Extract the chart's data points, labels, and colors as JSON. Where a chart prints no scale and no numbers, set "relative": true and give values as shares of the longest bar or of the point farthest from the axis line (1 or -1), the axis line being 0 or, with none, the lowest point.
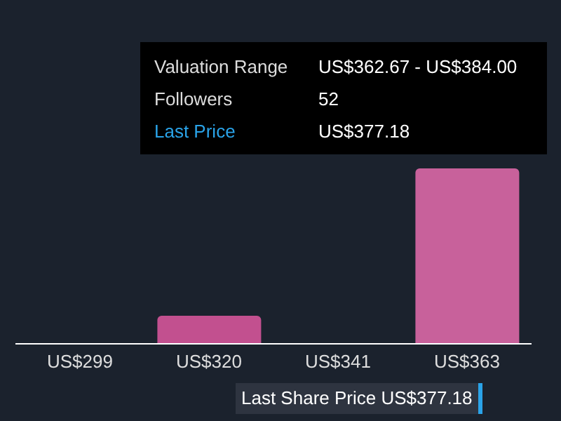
{
  "chart_data": {
    "type": "bar",
    "relative": true,
    "categories": [
      "US$299",
      "US$320",
      "US$341",
      "US$363"
    ],
    "values": [
      0,
      0.16,
      0,
      1
    ],
    "colors": [
      "#c2508f",
      "#c2508f",
      "#c2508f",
      "#c8619b"
    ],
    "legend": false,
    "grid": false,
    "annotations": [
      "Valuation Range",
      "US$362.67 - US$384.00",
      "Followers",
      "52",
      "Last Price",
      "US$377.18",
      "Last Share Price US$377.18"
    ]
  }
}
